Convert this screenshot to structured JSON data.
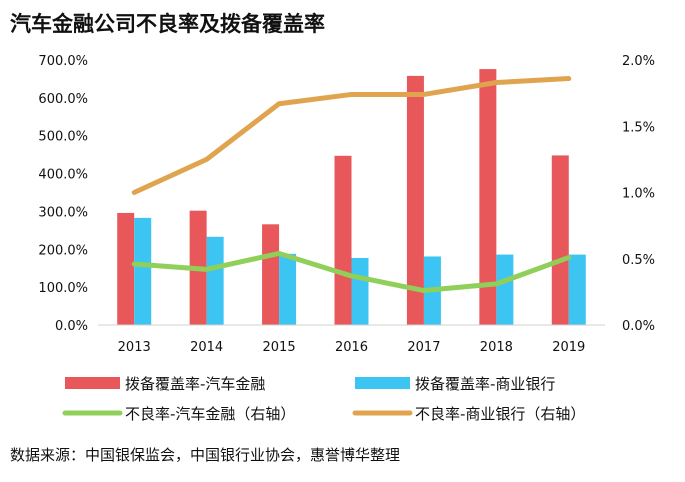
{
  "title": "汽车金融公司不良率及拨备覆盖率",
  "source": "数据来源：中国银保监会，中国银行业协会，惠誉博华整理",
  "colors": {
    "red_bar": "#e8575a",
    "blue_bar": "#3cc5f2",
    "green_line": "#8fcf5a",
    "orange_line": "#e0a44f"
  },
  "chart_data": {
    "type": "bar",
    "categories": [
      "2013",
      "2014",
      "2015",
      "2016",
      "2017",
      "2018",
      "2019"
    ],
    "y_left_ticks": [
      "0.0%",
      "100.0%",
      "200.0%",
      "300.0%",
      "400.0%",
      "500.0%",
      "600.0%",
      "700.0%"
    ],
    "y_right_ticks": [
      "0.0%",
      "0.5%",
      "1.0%",
      "1.5%",
      "2.0%"
    ],
    "ylim_left": [
      0,
      700
    ],
    "ylim_right": [
      0,
      2.0
    ],
    "series": [
      {
        "name": "拨备覆盖率-汽车金融",
        "type": "bar",
        "axis": "left",
        "values": [
          296,
          302,
          266,
          447,
          658,
          676,
          448
        ]
      },
      {
        "name": "拨备覆盖率-商业银行",
        "type": "bar",
        "axis": "left",
        "values": [
          283,
          233,
          188,
          177,
          181,
          186,
          186
        ]
      },
      {
        "name": "不良率-汽车金融（右轴）",
        "type": "line",
        "axis": "right",
        "values": [
          0.46,
          0.42,
          0.54,
          0.37,
          0.26,
          0.31,
          0.51
        ]
      },
      {
        "name": "不良率-商业银行（右轴）",
        "type": "line",
        "axis": "right",
        "values": [
          1.0,
          1.25,
          1.67,
          1.74,
          1.74,
          1.83,
          1.86
        ]
      }
    ],
    "legend_position": "bottom"
  }
}
